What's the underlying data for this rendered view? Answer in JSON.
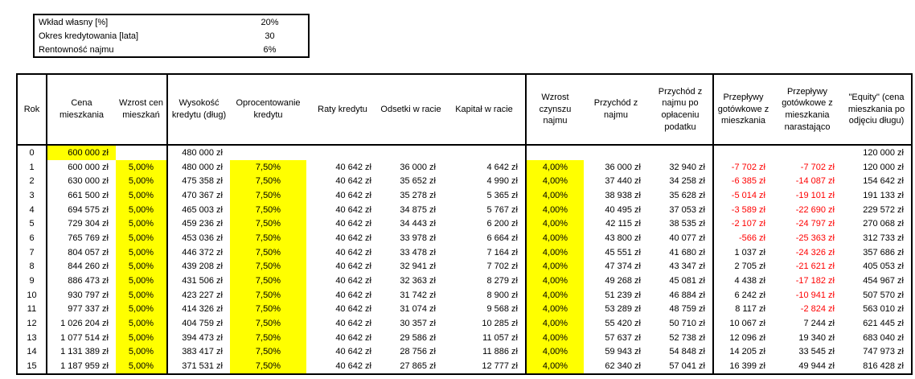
{
  "params": {
    "rows": [
      {
        "label": "Wkład własny [%]",
        "value": "20%"
      },
      {
        "label": "Okres kredytowania [lata]",
        "value": "30"
      },
      {
        "label": "Rentowność najmu",
        "value": "6%"
      }
    ]
  },
  "table": {
    "headers": [
      "Rok",
      "Cena mieszkania",
      "Wzrost cen mieszkań",
      "Wysokość kredytu (dług)",
      "Oprocentowanie kredytu",
      "Raty kredytu",
      "Odsetki w racie",
      "Kapitał w racie",
      "Wzrost czynszu najmu",
      "Przychód z najmu",
      "Przychód z najmu po opłaceniu podatku",
      "Przepływy gotówkowe z mieszkania",
      "Przepływy gotówkowe z mieszkania narastająco",
      "\"Equity\" (cena mieszkania po odjęciu długu)"
    ],
    "rows": [
      [
        "0",
        "600 000 zł",
        "",
        "480 000 zł",
        "",
        "",
        "",
        "",
        "",
        "",
        "",
        "",
        "",
        "120 000 zł"
      ],
      [
        "1",
        "600 000 zł",
        "5,00%",
        "480 000 zł",
        "7,50%",
        "40 642 zł",
        "36 000 zł",
        "4 642 zł",
        "4,00%",
        "36 000 zł",
        "32 940 zł",
        "-7 702 zł",
        "-7 702 zł",
        "120 000 zł"
      ],
      [
        "2",
        "630 000 zł",
        "5,00%",
        "475 358 zł",
        "7,50%",
        "40 642 zł",
        "35 652 zł",
        "4 990 zł",
        "4,00%",
        "37 440 zł",
        "34 258 zł",
        "-6 385 zł",
        "-14 087 zł",
        "154 642 zł"
      ],
      [
        "3",
        "661 500 zł",
        "5,00%",
        "470 367 zł",
        "7,50%",
        "40 642 zł",
        "35 278 zł",
        "5 365 zł",
        "4,00%",
        "38 938 zł",
        "35 628 zł",
        "-5 014 zł",
        "-19 101 zł",
        "191 133 zł"
      ],
      [
        "4",
        "694 575 zł",
        "5,00%",
        "465 003 zł",
        "7,50%",
        "40 642 zł",
        "34 875 zł",
        "5 767 zł",
        "4,00%",
        "40 495 zł",
        "37 053 zł",
        "-3 589 zł",
        "-22 690 zł",
        "229 572 zł"
      ],
      [
        "5",
        "729 304 zł",
        "5,00%",
        "459 236 zł",
        "7,50%",
        "40 642 zł",
        "34 443 zł",
        "6 200 zł",
        "4,00%",
        "42 115 zł",
        "38 535 zł",
        "-2 107 zł",
        "-24 797 zł",
        "270 068 zł"
      ],
      [
        "6",
        "765 769 zł",
        "5,00%",
        "453 036 zł",
        "7,50%",
        "40 642 zł",
        "33 978 zł",
        "6 664 zł",
        "4,00%",
        "43 800 zł",
        "40 077 zł",
        "-566 zł",
        "-25 363 zł",
        "312 733 zł"
      ],
      [
        "7",
        "804 057 zł",
        "5,00%",
        "446 372 zł",
        "7,50%",
        "40 642 zł",
        "33 478 zł",
        "7 164 zł",
        "4,00%",
        "45 551 zł",
        "41 680 zł",
        "1 037 zł",
        "-24 326 zł",
        "357 686 zł"
      ],
      [
        "8",
        "844 260 zł",
        "5,00%",
        "439 208 zł",
        "7,50%",
        "40 642 zł",
        "32 941 zł",
        "7 702 zł",
        "4,00%",
        "47 374 zł",
        "43 347 zł",
        "2 705 zł",
        "-21 621 zł",
        "405 053 zł"
      ],
      [
        "9",
        "886 473 zł",
        "5,00%",
        "431 506 zł",
        "7,50%",
        "40 642 zł",
        "32 363 zł",
        "8 279 zł",
        "4,00%",
        "49 268 zł",
        "45 081 zł",
        "4 438 zł",
        "-17 182 zł",
        "454 967 zł"
      ],
      [
        "10",
        "930 797 zł",
        "5,00%",
        "423 227 zł",
        "7,50%",
        "40 642 zł",
        "31 742 zł",
        "8 900 zł",
        "4,00%",
        "51 239 zł",
        "46 884 zł",
        "6 242 zł",
        "-10 941 zł",
        "507 570 zł"
      ],
      [
        "11",
        "977 337 zł",
        "5,00%",
        "414 326 zł",
        "7,50%",
        "40 642 zł",
        "31 074 zł",
        "9 568 zł",
        "4,00%",
        "53 289 zł",
        "48 759 zł",
        "8 117 zł",
        "-2 824 zł",
        "563 010 zł"
      ],
      [
        "12",
        "1 026 204 zł",
        "5,00%",
        "404 759 zł",
        "7,50%",
        "40 642 zł",
        "30 357 zł",
        "10 285 zł",
        "4,00%",
        "55 420 zł",
        "50 710 zł",
        "10 067 zł",
        "7 244 zł",
        "621 445 zł"
      ],
      [
        "13",
        "1 077 514 zł",
        "5,00%",
        "394 473 zł",
        "7,50%",
        "40 642 zł",
        "29 586 zł",
        "11 057 zł",
        "4,00%",
        "57 637 zł",
        "52 738 zł",
        "12 096 zł",
        "19 340 zł",
        "683 040 zł"
      ],
      [
        "14",
        "1 131 389 zł",
        "5,00%",
        "383 417 zł",
        "7,50%",
        "40 642 zł",
        "28 756 zł",
        "11 886 zł",
        "4,00%",
        "59 943 zł",
        "54 848 zł",
        "14 205 zł",
        "33 545 zł",
        "747 973 zł"
      ],
      [
        "15",
        "1 187 959 zł",
        "5,00%",
        "371 531 zł",
        "7,50%",
        "40 642 zł",
        "27 865 zł",
        "12 777 zł",
        "4,00%",
        "62 340 zł",
        "57 041 zł",
        "16 399 zł",
        "49 944 zł",
        "816 428 zł"
      ]
    ],
    "highlights": {
      "row0_cols": [
        1
      ],
      "input_cols": [
        2,
        4,
        8
      ]
    }
  },
  "colors": {
    "highlight": "#FFFF00",
    "negative_text": "#FF0000",
    "border": "#000000",
    "text": "#000000"
  }
}
